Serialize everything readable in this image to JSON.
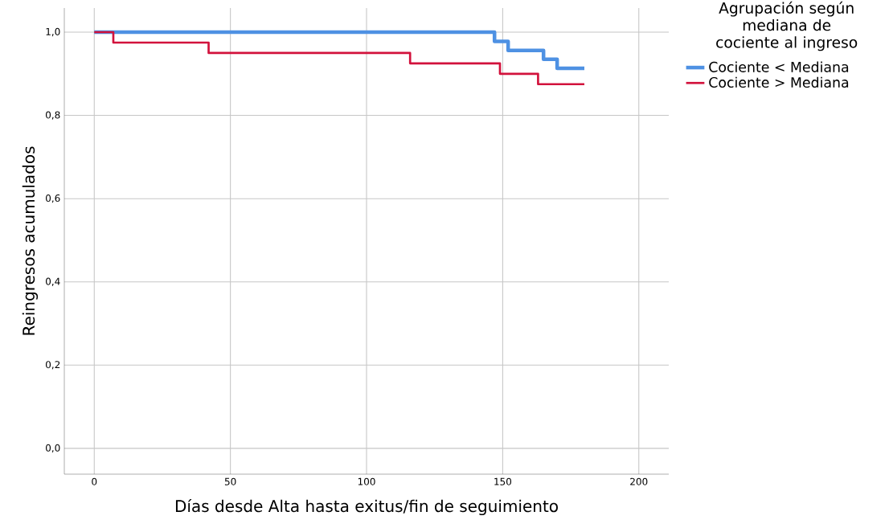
{
  "chart_data": {
    "type": "step",
    "xlabel": "Días desde Alta hasta exitus/fin de seguimiento",
    "ylabel": "Reingresos acumulados",
    "legend_title": "Agrupación según mediana de cociente al ingreso",
    "xlim": [
      -11,
      211
    ],
    "ylim": [
      -0.062,
      1.058
    ],
    "xticks": [
      0,
      50,
      100,
      150,
      200
    ],
    "yticks": [
      {
        "value": 0,
        "label": "0,0"
      },
      {
        "value": 0.2,
        "label": "0,2"
      },
      {
        "value": 0.4,
        "label": "0,4"
      },
      {
        "value": 0.6,
        "label": "0,6"
      },
      {
        "value": 0.8,
        "label": "0,8"
      },
      {
        "value": 1,
        "label": "1,0"
      }
    ],
    "grid": true,
    "legend": "top right",
    "series": [
      {
        "name": "Cociente < Mediana",
        "color": "#4e91e3",
        "x": [
          0,
          147,
          152,
          165,
          170,
          180
        ],
        "values": [
          1.0,
          0.978,
          0.956,
          0.935,
          0.913,
          0.913
        ]
      },
      {
        "name": "Cociente > Mediana",
        "color": "#d2123c",
        "x": [
          0,
          7,
          42,
          116,
          149,
          163,
          180
        ],
        "values": [
          1.0,
          0.975,
          0.95,
          0.925,
          0.9,
          0.875,
          0.875
        ]
      }
    ]
  }
}
